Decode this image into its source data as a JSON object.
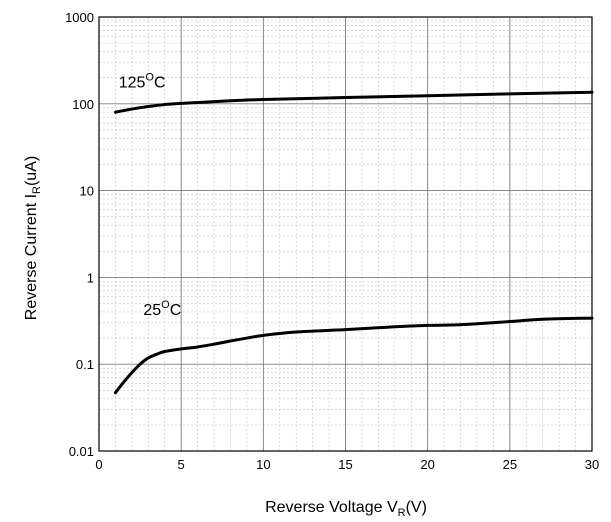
{
  "chart_data": {
    "type": "line",
    "title": "",
    "xlabel": {
      "main": "Reverse Voltage V",
      "sub": "R",
      "tail": "(V)"
    },
    "ylabel": {
      "main": "Reverse Current I",
      "sub": "R",
      "tail": "(uA)"
    },
    "xlim": [
      0,
      30
    ],
    "ylim": [
      0.01,
      1000
    ],
    "yscale": "log",
    "grid": true,
    "x_ticks": [
      0,
      5,
      10,
      15,
      20,
      25,
      30
    ],
    "x_tick_labels": [
      "0",
      "5",
      "10",
      "15",
      "20",
      "25",
      "30"
    ],
    "y_ticks": [
      0.01,
      0.1,
      1,
      10,
      100,
      1000
    ],
    "y_tick_labels": [
      "0.01",
      "0.1",
      "1",
      "10",
      "100",
      "1000"
    ],
    "series": [
      {
        "label_main": "125",
        "label_sup": "O",
        "label_tail": "C",
        "label_at": [
          1.2,
          155
        ],
        "color": "#000000",
        "x": [
          1,
          2,
          3,
          4,
          5,
          7,
          10,
          15,
          20,
          25,
          30
        ],
        "y": [
          80,
          87,
          93,
          98,
          101,
          106,
          112,
          118,
          124,
          130,
          136
        ]
      },
      {
        "label_main": "25",
        "label_sup": "O",
        "label_tail": "C",
        "label_at": [
          2.7,
          0.37
        ],
        "color": "#000000",
        "x": [
          1,
          1.5,
          2,
          2.5,
          3,
          3.5,
          4,
          5,
          6,
          7,
          8,
          9,
          10,
          12,
          15,
          18,
          20,
          22,
          25,
          27,
          30
        ],
        "y": [
          0.047,
          0.062,
          0.08,
          0.1,
          0.118,
          0.13,
          0.14,
          0.15,
          0.158,
          0.17,
          0.185,
          0.2,
          0.215,
          0.235,
          0.25,
          0.27,
          0.28,
          0.285,
          0.31,
          0.33,
          0.34
        ]
      }
    ]
  }
}
